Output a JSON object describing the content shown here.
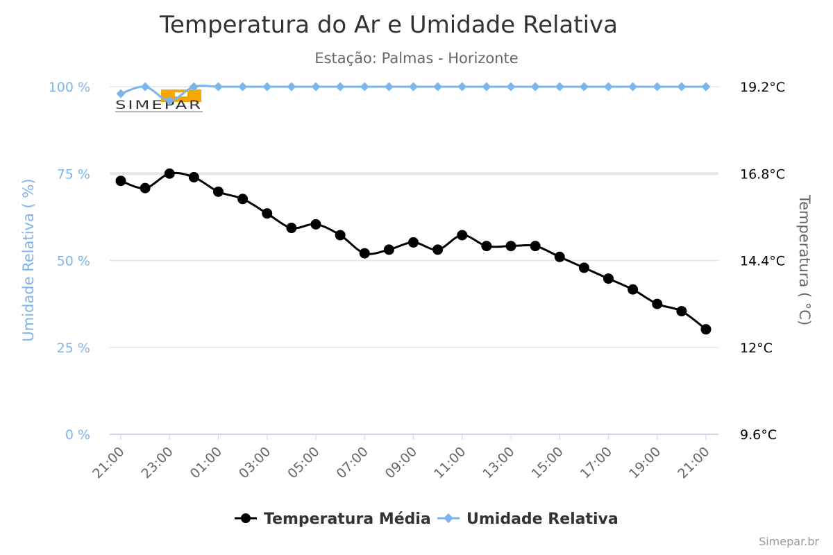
{
  "chart_data": {
    "type": "line",
    "title": "Temperatura do Ar e Umidade Relativa",
    "subtitle": "Estação: Palmas - Horizonte",
    "y_left": {
      "label": "Umidade Relativa ( %)",
      "ticks": [
        "0 %",
        "25 %",
        "50 %",
        "75 %",
        "100 %"
      ],
      "tick_values": [
        0,
        25,
        50,
        75,
        100
      ],
      "range": [
        0,
        100
      ]
    },
    "y_right": {
      "label": "Temperatura ( °C)",
      "ticks": [
        "9.6°C",
        "12°C",
        "14.4°C",
        "16.8°C",
        "19.2°C"
      ],
      "tick_values": [
        9.6,
        12,
        14.4,
        16.8,
        19.2
      ],
      "range": [
        9.6,
        19.2
      ]
    },
    "x_tick_labels": [
      "21:00",
      "23:00",
      "01:00",
      "03:00",
      "05:00",
      "07:00",
      "09:00",
      "11:00",
      "13:00",
      "15:00",
      "17:00",
      "19:00",
      "21:00"
    ],
    "x": [
      "21:00",
      "22:00",
      "23:00",
      "00:00",
      "01:00",
      "02:00",
      "03:00",
      "04:00",
      "05:00",
      "06:00",
      "07:00",
      "08:00",
      "09:00",
      "10:00",
      "11:00",
      "12:00",
      "13:00",
      "14:00",
      "15:00",
      "16:00",
      "17:00",
      "18:00",
      "19:00",
      "20:00",
      "21:00"
    ],
    "series": [
      {
        "name": "Temperatura Média",
        "axis": "right",
        "color": "#000000",
        "marker": "circle",
        "values": [
          16.6,
          16.4,
          16.8,
          16.7,
          16.3,
          16.1,
          15.7,
          15.3,
          15.4,
          15.1,
          14.6,
          14.7,
          14.9,
          14.7,
          15.1,
          14.8,
          14.8,
          14.8,
          14.5,
          14.2,
          13.9,
          13.6,
          13.2,
          13.0,
          12.5
        ]
      },
      {
        "name": "Umidade Relativa",
        "axis": "left",
        "color": "#7cb5ec",
        "marker": "diamond",
        "values": [
          98,
          100,
          96,
          100,
          100,
          100,
          100,
          100,
          100,
          100,
          100,
          100,
          100,
          100,
          100,
          100,
          100,
          100,
          100,
          100,
          100,
          100,
          100,
          100,
          100
        ]
      }
    ],
    "grid": true,
    "legend_position": "bottom-center"
  },
  "logo": {
    "text": "SIMEPAR",
    "colors": {
      "orange": "#f7a700",
      "dark": "#333333"
    }
  },
  "credits": "Simepar.br"
}
